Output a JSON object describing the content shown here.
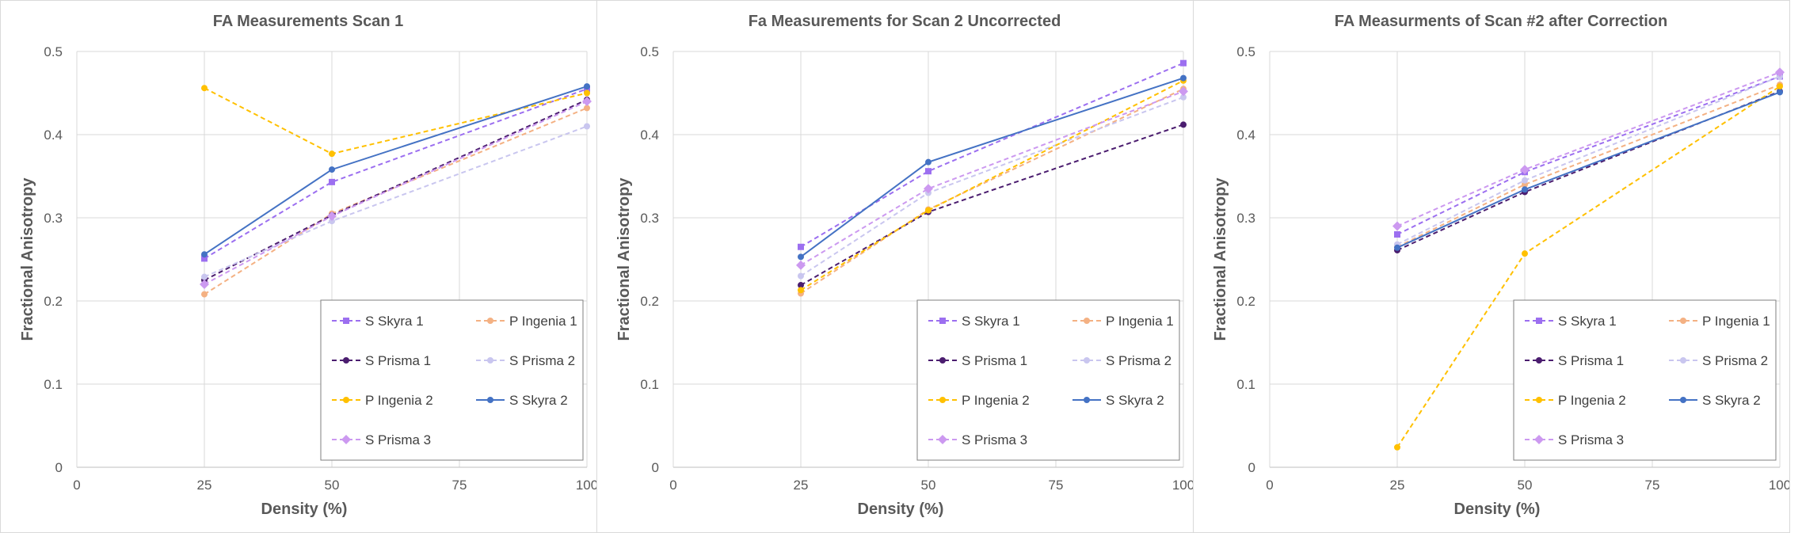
{
  "chart_data": [
    {
      "type": "line",
      "title": "FA Measurements Scan 1",
      "xlabel": "Density (%)",
      "ylabel": "Fractional Anisotropy",
      "xlim": [
        0,
        100
      ],
      "ylim": [
        0,
        0.5
      ],
      "xticks": [
        "0",
        "25",
        "50",
        "75",
        "100"
      ],
      "yticks": [
        "0",
        "0.1",
        "0.2",
        "0.3",
        "0.4",
        "0.5"
      ],
      "x": [
        25,
        50,
        100
      ],
      "legend_position": "bottom-right",
      "series": [
        {
          "name": "S Skyra 1",
          "values": [
            0.251,
            0.343,
            0.455
          ],
          "color": "#9c6ff0",
          "dash": "dashed",
          "marker": "square"
        },
        {
          "name": "P Ingenia 1",
          "values": [
            0.208,
            0.305,
            0.432
          ],
          "color": "#f4b183",
          "dash": "dashed",
          "marker": "circle"
        },
        {
          "name": "S Prisma 1",
          "values": [
            0.225,
            0.303,
            0.442
          ],
          "color": "#4b1d6f",
          "dash": "dashed",
          "marker": "circle"
        },
        {
          "name": "S Prisma 2",
          "values": [
            0.229,
            0.296,
            0.41
          ],
          "color": "#c9c6ef",
          "dash": "dashed",
          "marker": "circle"
        },
        {
          "name": "P Ingenia 2",
          "values": [
            0.456,
            0.377,
            0.45
          ],
          "color": "#ffc000",
          "dash": "dashed",
          "marker": "circle"
        },
        {
          "name": "S Skyra 2",
          "values": [
            0.256,
            0.358,
            0.458
          ],
          "color": "#4472c4",
          "dash": "solid",
          "marker": "circle"
        },
        {
          "name": "S Prisma 3",
          "values": [
            0.22,
            0.302,
            0.44
          ],
          "color": "#cc99f0",
          "dash": "dashed",
          "marker": "diamond"
        }
      ]
    },
    {
      "type": "line",
      "title": "Fa Measurements for Scan 2 Uncorrected",
      "xlabel": "Density (%)",
      "ylabel": "Fractional Anisotropy",
      "xlim": [
        0,
        100
      ],
      "ylim": [
        0,
        0.5
      ],
      "xticks": [
        "0",
        "25",
        "50",
        "75",
        "100"
      ],
      "yticks": [
        "0",
        "0.1",
        "0.2",
        "0.3",
        "0.4",
        "0.5"
      ],
      "x": [
        25,
        50,
        100
      ],
      "legend_position": "bottom-right",
      "series": [
        {
          "name": "S Skyra 1",
          "values": [
            0.265,
            0.356,
            0.486
          ],
          "color": "#9c6ff0",
          "dash": "dashed",
          "marker": "square"
        },
        {
          "name": "P Ingenia 1",
          "values": [
            0.209,
            0.31,
            0.455
          ],
          "color": "#f4b183",
          "dash": "dashed",
          "marker": "circle"
        },
        {
          "name": "S Prisma 1",
          "values": [
            0.219,
            0.307,
            0.412
          ],
          "color": "#4b1d6f",
          "dash": "dashed",
          "marker": "circle"
        },
        {
          "name": "S Prisma 2",
          "values": [
            0.23,
            0.33,
            0.445
          ],
          "color": "#c9c6ef",
          "dash": "dashed",
          "marker": "circle"
        },
        {
          "name": "P Ingenia 2",
          "values": [
            0.213,
            0.309,
            0.465
          ],
          "color": "#ffc000",
          "dash": "dashed",
          "marker": "circle"
        },
        {
          "name": "S Skyra 2",
          "values": [
            0.253,
            0.367,
            0.468
          ],
          "color": "#4472c4",
          "dash": "solid",
          "marker": "circle"
        },
        {
          "name": "S Prisma 3",
          "values": [
            0.243,
            0.335,
            0.452
          ],
          "color": "#cc99f0",
          "dash": "dashed",
          "marker": "diamond"
        }
      ]
    },
    {
      "type": "line",
      "title": "FA Measurments of Scan #2 after Correction",
      "xlabel": "Density (%)",
      "ylabel": "Fractional Anisotropy",
      "xlim": [
        0,
        100
      ],
      "ylim": [
        0,
        0.5
      ],
      "xticks": [
        "0",
        "25",
        "50",
        "75",
        "100"
      ],
      "yticks": [
        "0",
        "0.1",
        "0.2",
        "0.3",
        "0.4",
        "0.5"
      ],
      "x": [
        25,
        50,
        100
      ],
      "legend_position": "bottom-right",
      "series": [
        {
          "name": "S Skyra 1",
          "values": [
            0.28,
            0.355,
            0.47
          ],
          "color": "#9c6ff0",
          "dash": "dashed",
          "marker": "square"
        },
        {
          "name": "P Ingenia 1",
          "values": [
            0.265,
            0.34,
            0.46
          ],
          "color": "#f4b183",
          "dash": "dashed",
          "marker": "circle"
        },
        {
          "name": "S Prisma 1",
          "values": [
            0.261,
            0.331,
            0.452
          ],
          "color": "#4b1d6f",
          "dash": "dashed",
          "marker": "circle"
        },
        {
          "name": "S Prisma 2",
          "values": [
            0.268,
            0.345,
            0.47
          ],
          "color": "#c9c6ef",
          "dash": "dashed",
          "marker": "circle"
        },
        {
          "name": "P Ingenia 2",
          "values": [
            0.024,
            0.257,
            0.458
          ],
          "color": "#ffc000",
          "dash": "dashed",
          "marker": "circle"
        },
        {
          "name": "S Skyra 2",
          "values": [
            0.264,
            0.334,
            0.451
          ],
          "color": "#4472c4",
          "dash": "solid",
          "marker": "circle"
        },
        {
          "name": "S Prisma 3",
          "values": [
            0.29,
            0.358,
            0.475
          ],
          "color": "#cc99f0",
          "dash": "dashed",
          "marker": "diamond"
        }
      ]
    }
  ]
}
